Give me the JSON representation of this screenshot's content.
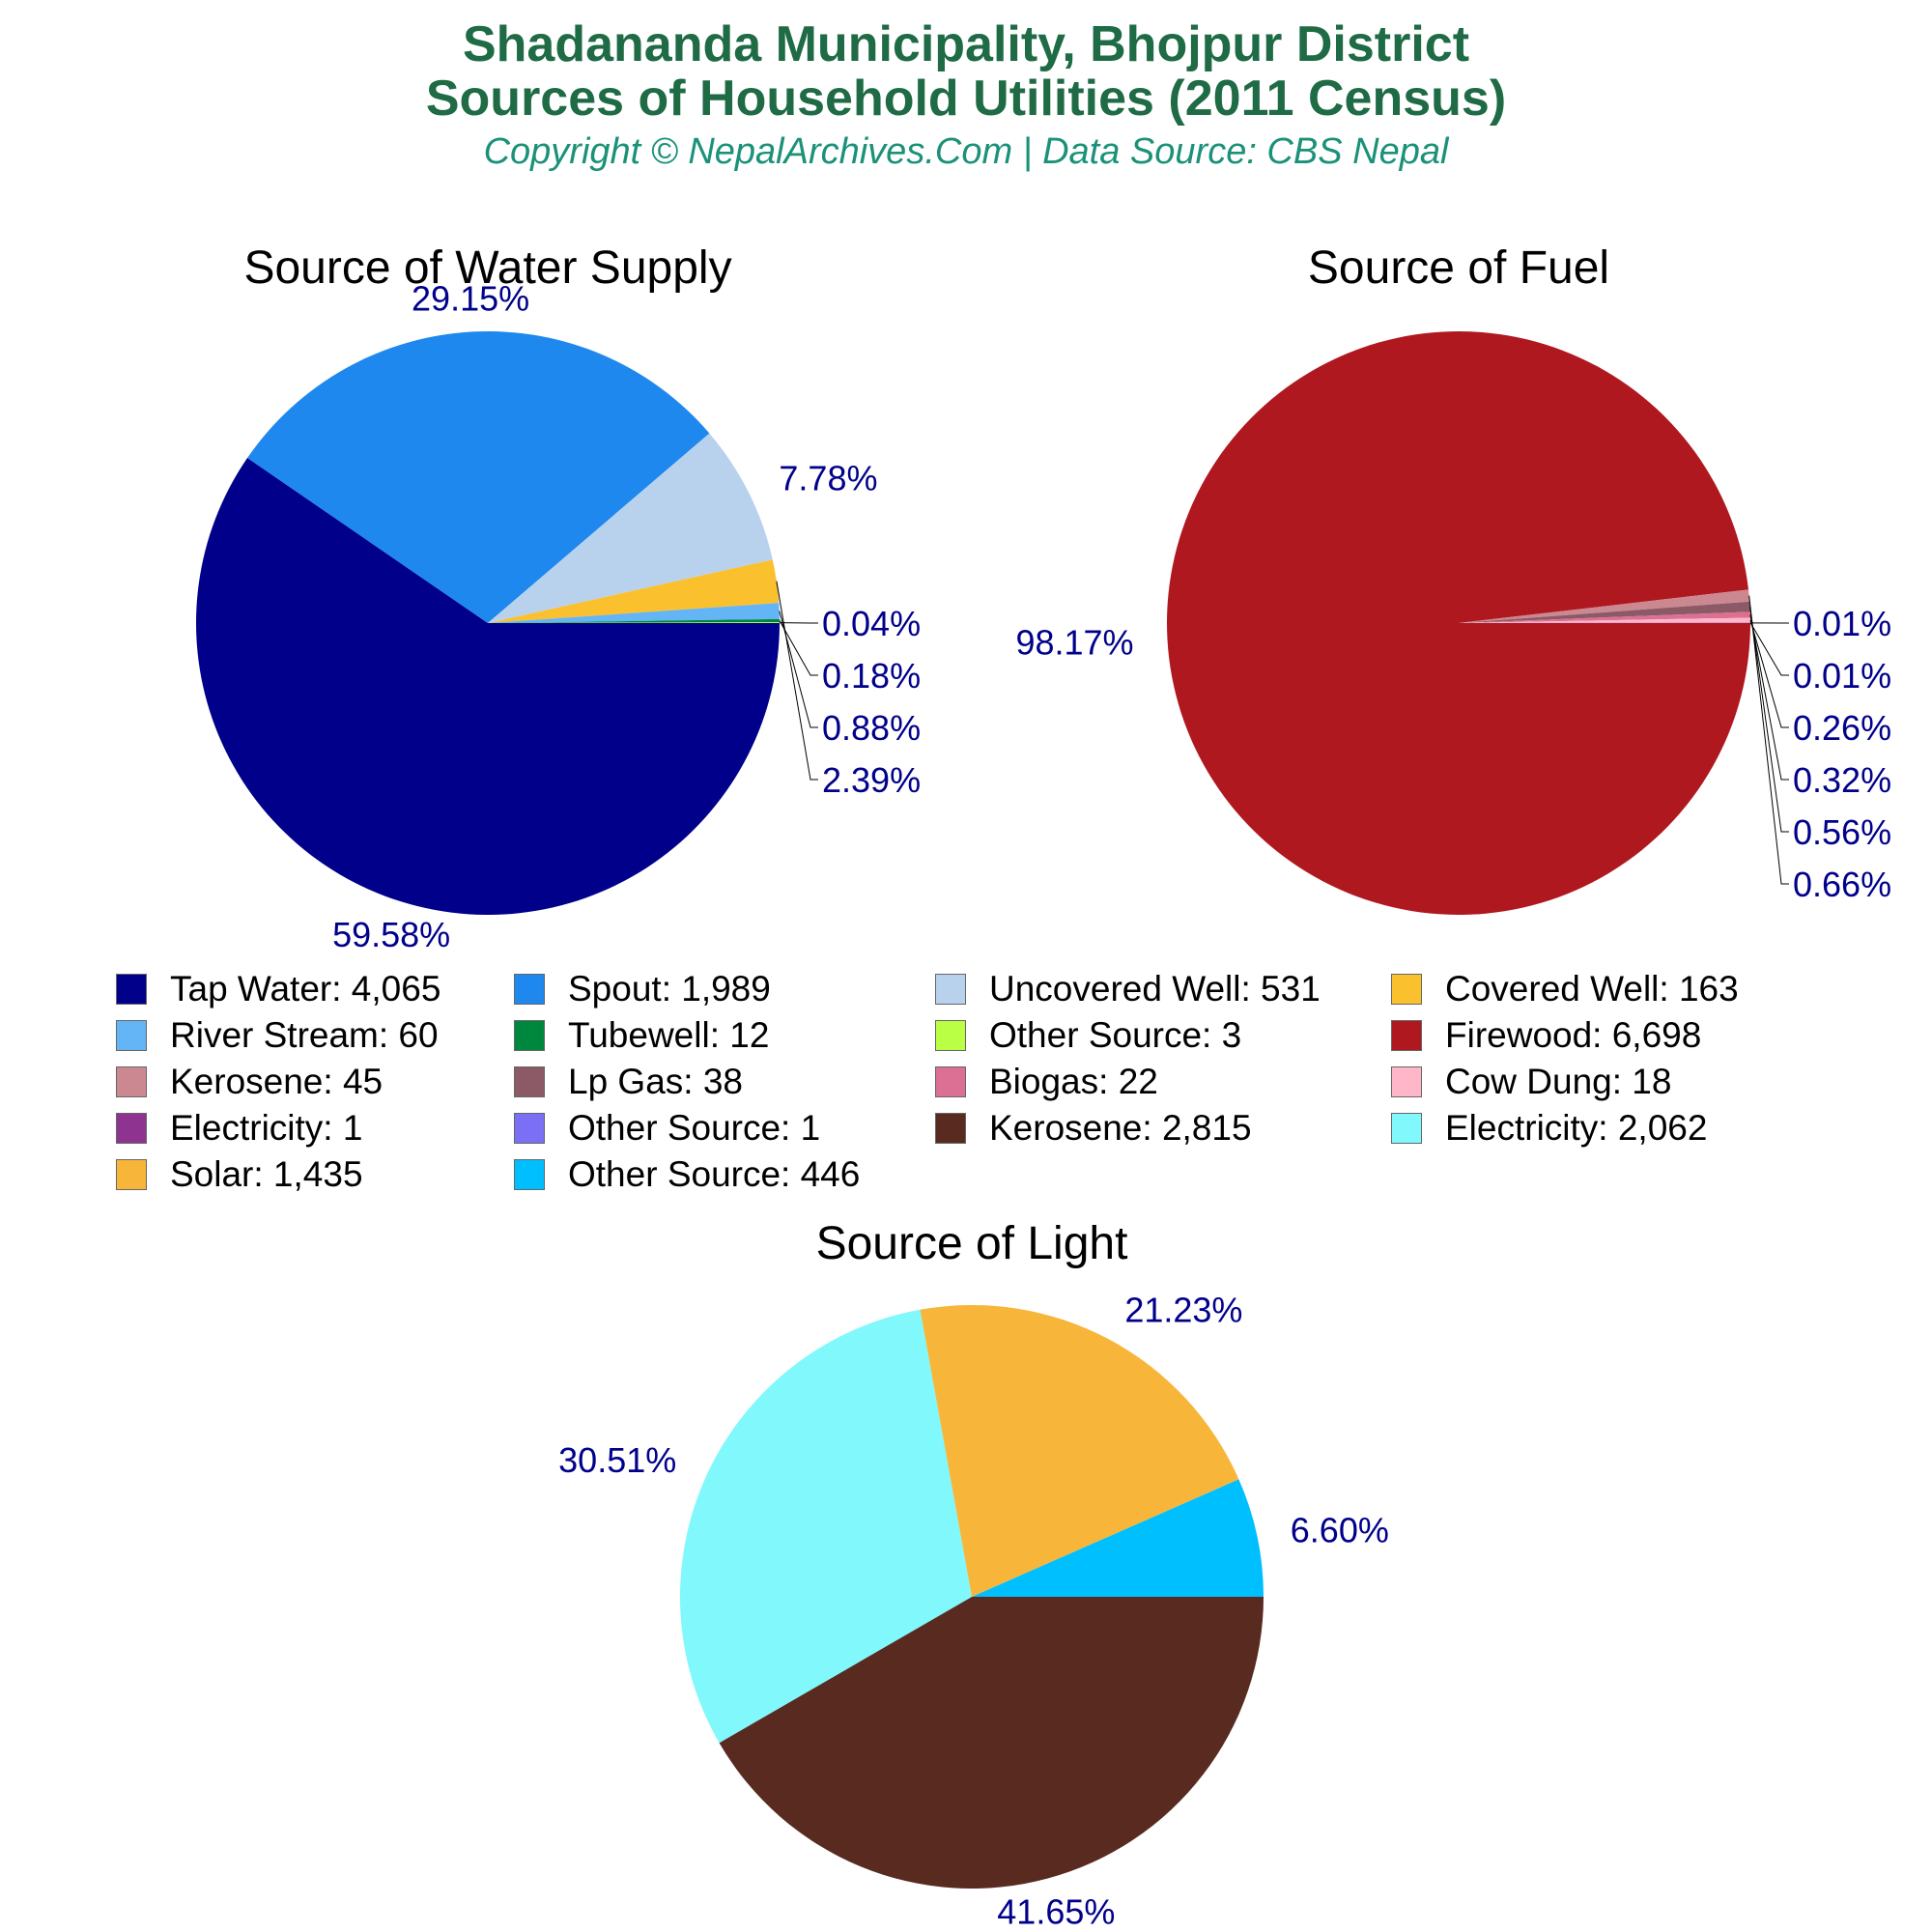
{
  "header": {
    "title_line1": "Shadananda Municipality, Bhojpur District",
    "title_line2": "Sources of Household Utilities (2011 Census)",
    "subtitle": "Copyright © NepalArchives.Com | Data Source: CBS Nepal"
  },
  "chart_data": [
    {
      "type": "pie",
      "title": "Source of Water Supply",
      "categories": [
        "Tap Water",
        "Spout",
        "Uncovered Well",
        "Covered Well",
        "River Stream",
        "Tubewell",
        "Other Source"
      ],
      "values": [
        4065,
        1989,
        531,
        163,
        60,
        12,
        3
      ],
      "labels": [
        "59.58%",
        "29.15%",
        "7.78%",
        "2.39%",
        "0.88%",
        "0.18%",
        "0.04%"
      ],
      "colors": [
        "#00008b",
        "#1e88ee",
        "#b8d2ee",
        "#fbc02d",
        "#64b5f6",
        "#00873e",
        "#bbff44"
      ]
    },
    {
      "type": "pie",
      "title": "Source of Fuel",
      "categories": [
        "Firewood",
        "Kerosene",
        "Lp Gas",
        "Biogas",
        "Cow Dung",
        "Electricity",
        "Other Source"
      ],
      "values": [
        6698,
        45,
        38,
        22,
        18,
        1,
        1
      ],
      "labels": [
        "98.17%",
        "0.66%",
        "0.56%",
        "0.32%",
        "0.26%",
        "0.01%",
        "0.01%"
      ],
      "colors": [
        "#b0181f",
        "#cc8890",
        "#8b5a66",
        "#dc6f94",
        "#ffb6c8",
        "#8e3390",
        "#7b6ff5"
      ]
    },
    {
      "type": "pie",
      "title": "Source of Light",
      "categories": [
        "Kerosene",
        "Electricity",
        "Solar",
        "Other Source"
      ],
      "values": [
        2815,
        2062,
        1435,
        446
      ],
      "labels": [
        "41.65%",
        "30.51%",
        "21.23%",
        "6.60%"
      ],
      "colors": [
        "#582a20",
        "#80f8fc",
        "#f7b63a",
        "#00bfff"
      ]
    }
  ],
  "legend": [
    {
      "label": "Tap Water: 4,065",
      "color": "#00008b"
    },
    {
      "label": "Spout: 1,989",
      "color": "#1e88ee"
    },
    {
      "label": "Uncovered Well: 531",
      "color": "#b8d2ee"
    },
    {
      "label": "Covered Well: 163",
      "color": "#fbc02d"
    },
    {
      "label": "River Stream: 60",
      "color": "#64b5f6"
    },
    {
      "label": "Tubewell: 12",
      "color": "#00873e"
    },
    {
      "label": "Other Source: 3",
      "color": "#bbff44"
    },
    {
      "label": "Firewood: 6,698",
      "color": "#b0181f"
    },
    {
      "label": "Kerosene: 45",
      "color": "#cc8890"
    },
    {
      "label": "Lp Gas: 38",
      "color": "#8b5a66"
    },
    {
      "label": "Biogas: 22",
      "color": "#dc6f94"
    },
    {
      "label": "Cow Dung: 18",
      "color": "#ffb6c8"
    },
    {
      "label": "Electricity: 1",
      "color": "#8e3390"
    },
    {
      "label": "Other Source: 1",
      "color": "#7b6ff5"
    },
    {
      "label": "Kerosene: 2,815",
      "color": "#582a20"
    },
    {
      "label": "Electricity: 2,062",
      "color": "#80f8fc"
    },
    {
      "label": "Solar: 1,435",
      "color": "#f7b63a"
    },
    {
      "label": "Other Source: 446",
      "color": "#00bfff"
    }
  ],
  "colors": {
    "title": "#1e6b45",
    "subtitle": "#1a9178",
    "value_label": "#00008b"
  }
}
